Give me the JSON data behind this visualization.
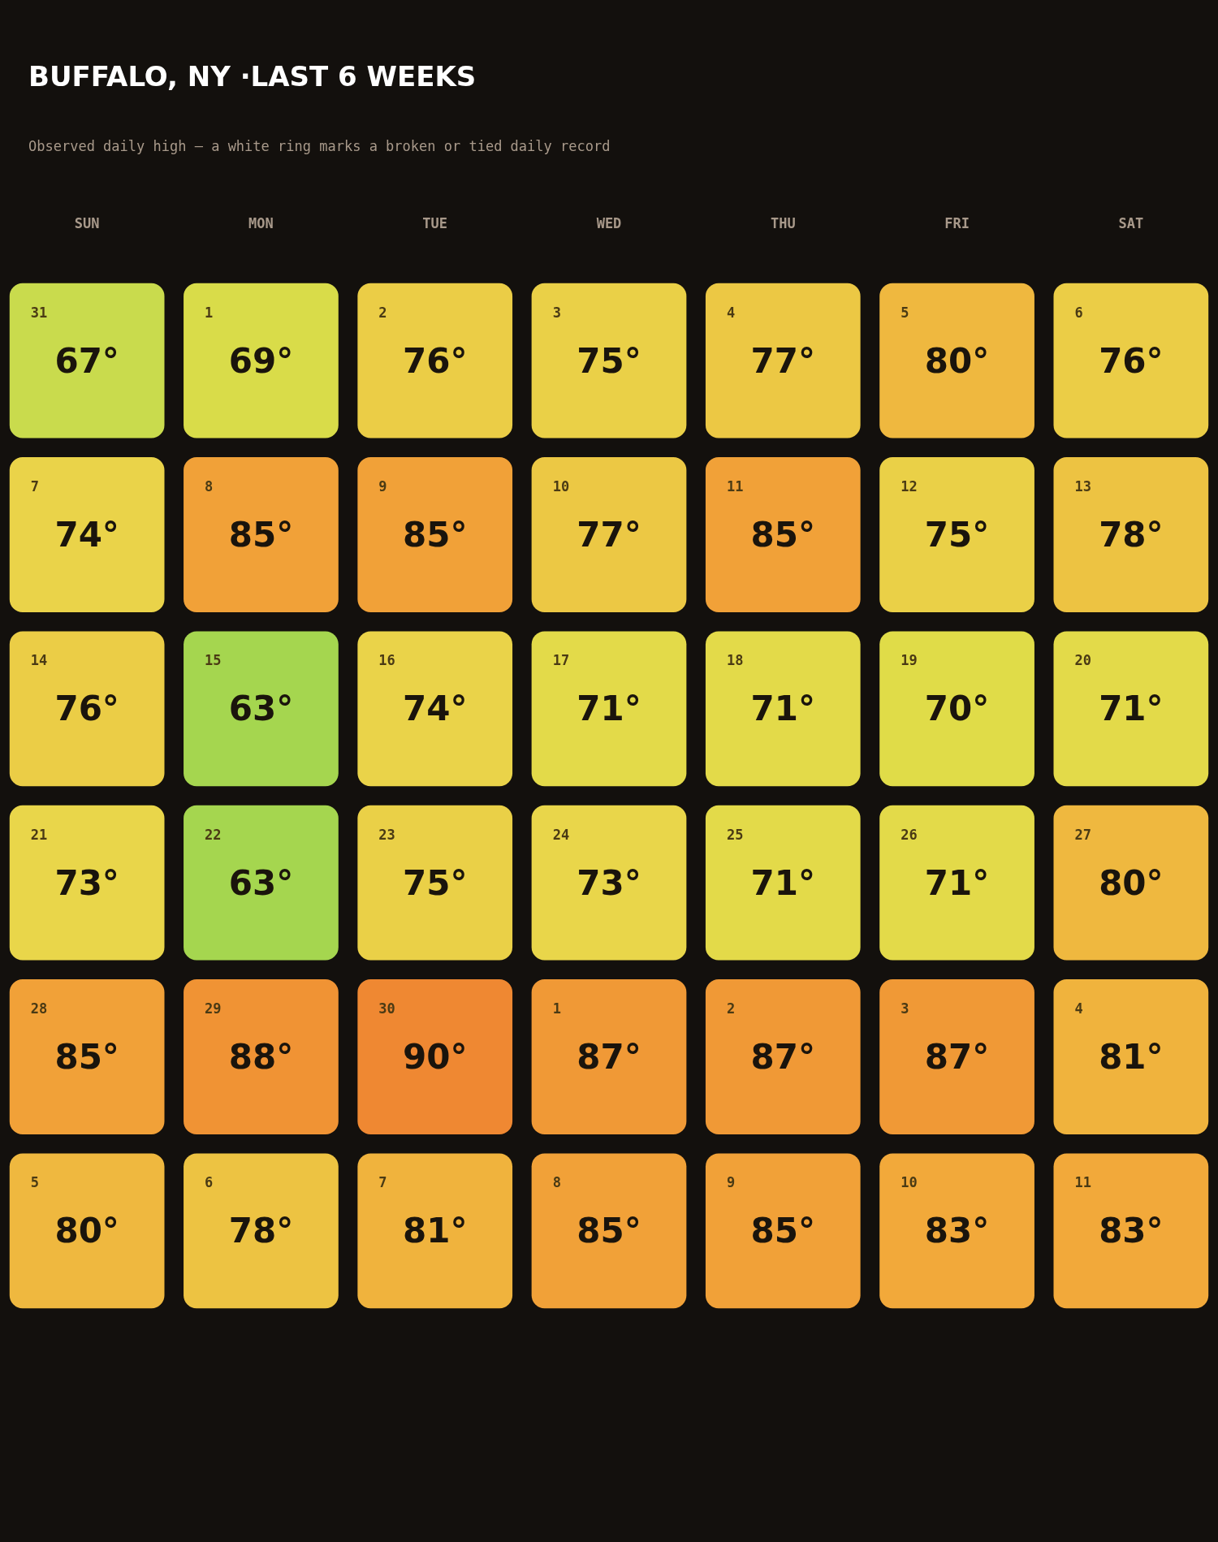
{
  "chart_data": {
    "type": "heatmap",
    "title": "BUFFALO, NY ·LAST 6 WEEKS",
    "subtitle": "Observed daily high — a white ring marks a broken or tied daily record",
    "categories": [
      "SUN",
      "MON",
      "TUE",
      "WED",
      "THU",
      "FRI",
      "SAT"
    ],
    "y_categories": [
      null,
      null,
      null,
      null,
      null,
      null
    ],
    "cells": [
      [
        67,
        69,
        76,
        75,
        77,
        80,
        76
      ],
      [
        74,
        85,
        85,
        77,
        85,
        75,
        78
      ],
      [
        76,
        63,
        74,
        71,
        71,
        70,
        71
      ],
      [
        73,
        63,
        75,
        73,
        71,
        71,
        80
      ],
      [
        85,
        88,
        90,
        87,
        87,
        87,
        81
      ],
      [
        80,
        78,
        81,
        85,
        85,
        83,
        83
      ]
    ],
    "cell_labels": [
      [
        "67°",
        "69°",
        "76°",
        "75°",
        "77°",
        "80°",
        "76°"
      ],
      [
        "74°",
        "85°",
        "85°",
        "77°",
        "85°",
        "75°",
        "78°"
      ],
      [
        "76°",
        "63°",
        "74°",
        "71°",
        "71°",
        "70°",
        "71°"
      ],
      [
        "73°",
        "63°",
        "75°",
        "73°",
        "71°",
        "71°",
        "80°"
      ],
      [
        "85°",
        "88°",
        "90°",
        "87°",
        "87°",
        "87°",
        "81°"
      ],
      [
        "80°",
        "78°",
        "81°",
        "85°",
        "85°",
        "83°",
        "83°"
      ]
    ],
    "annotations": [
      "31",
      "1",
      "2",
      "3",
      "4",
      "5",
      "6",
      "7",
      "8",
      "9",
      "10",
      "11",
      "12",
      "13",
      "14",
      "15",
      "16",
      "17",
      "18",
      "19",
      "20",
      "21",
      "22",
      "23",
      "24",
      "25",
      "26",
      "27",
      "28",
      "29",
      "30",
      "1",
      "2",
      "3",
      "4",
      "5",
      "6",
      "7",
      "8",
      "9",
      "10",
      "11"
    ]
  }
}
